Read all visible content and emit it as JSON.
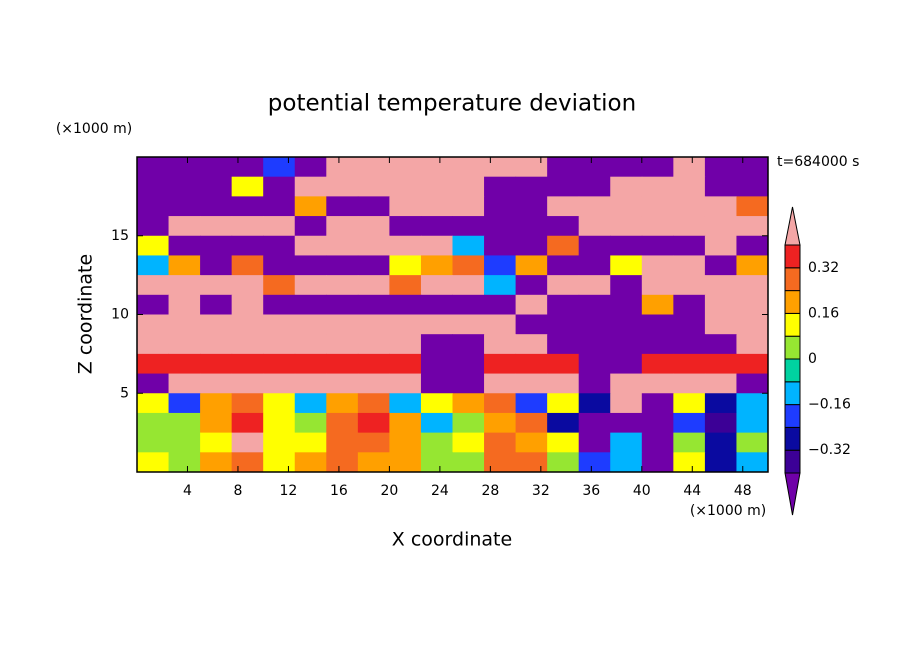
{
  "chart_data": {
    "type": "contour",
    "title": "potential temperature deviation",
    "x_label": "X coordinate",
    "y_label": "Z coordinate",
    "x_unit": "(×1000 m)",
    "y_unit": "(×1000 m)",
    "annotation": "t=684000 s",
    "xlim": [
      0,
      50
    ],
    "ylim": [
      0,
      20
    ],
    "xticks": [
      4,
      8,
      12,
      16,
      20,
      24,
      28,
      32,
      36,
      40,
      44,
      48
    ],
    "yticks": [
      5,
      10,
      15
    ],
    "levels": [
      -0.4,
      -0.32,
      -0.24,
      -0.16,
      -0.08,
      0,
      0.08,
      0.16,
      0.24,
      0.32,
      0.4
    ],
    "colors": [
      "#7000a8",
      "#3c0096",
      "#0a0aa0",
      "#1e3cff",
      "#00b4ff",
      "#00d2a0",
      "#96e632",
      "#ffff00",
      "#ffa000",
      "#f56a20",
      "#ee2222",
      "#f4a6a6"
    ],
    "colorbar_ticks": [
      0.32,
      0.16,
      0,
      {
        "value": -0.16,
        "label": "−0.16"
      },
      {
        "value": -0.32,
        "label": "−0.32"
      }
    ],
    "field": [
      [
        -0.5,
        -0.5,
        -0.5,
        -0.5,
        -0.2,
        -0.5,
        0.5,
        0.5,
        0.5,
        0.5,
        0.5,
        0.5,
        0.5,
        -0.5,
        -0.5,
        -0.5,
        -0.5,
        0.5,
        -0.5,
        -0.5
      ],
      [
        -0.5,
        -0.5,
        -0.5,
        0.1,
        -0.5,
        0.5,
        0.5,
        0.5,
        0.5,
        0.5,
        0.5,
        -0.5,
        -0.5,
        -0.5,
        -0.5,
        0.5,
        0.5,
        0.5,
        -0.5,
        -0.5
      ],
      [
        -0.5,
        -0.5,
        -0.5,
        -0.5,
        -0.5,
        0.2,
        -0.5,
        -0.5,
        0.5,
        0.5,
        0.5,
        -0.5,
        -0.5,
        0.5,
        0.5,
        0.5,
        0.5,
        0.5,
        0.5,
        0.3
      ],
      [
        -0.5,
        0.5,
        0.5,
        0.5,
        0.5,
        -0.5,
        0.5,
        0.5,
        -0.5,
        -0.5,
        -0.5,
        -0.5,
        -0.5,
        -0.5,
        0.5,
        0.5,
        0.5,
        0.5,
        0.5,
        0.5
      ],
      [
        0.1,
        -0.5,
        -0.5,
        -0.5,
        -0.5,
        0.5,
        0.5,
        0.5,
        0.5,
        0.5,
        -0.1,
        -0.5,
        -0.5,
        0.3,
        -0.5,
        -0.5,
        -0.5,
        -0.5,
        0.5,
        -0.5
      ],
      [
        -0.1,
        0.2,
        -0.5,
        0.3,
        -0.5,
        -0.5,
        -0.5,
        -0.5,
        0.1,
        0.2,
        0.3,
        -0.2,
        0.2,
        -0.5,
        -0.5,
        0.1,
        0.5,
        0.5,
        -0.5,
        0.2
      ],
      [
        0.5,
        0.5,
        0.5,
        0.5,
        0.3,
        0.5,
        0.5,
        0.5,
        0.3,
        0.5,
        0.5,
        -0.1,
        -0.5,
        0.5,
        0.5,
        -0.5,
        0.5,
        0.5,
        0.5,
        0.5
      ],
      [
        -0.5,
        0.5,
        -0.5,
        0.5,
        -0.5,
        -0.5,
        -0.5,
        -0.5,
        -0.5,
        -0.5,
        -0.5,
        -0.5,
        0.5,
        -0.5,
        -0.5,
        -0.5,
        0.2,
        -0.5,
        0.5,
        0.5
      ],
      [
        0.5,
        0.5,
        0.5,
        0.5,
        0.5,
        0.5,
        0.5,
        0.5,
        0.5,
        0.5,
        0.5,
        0.5,
        -0.5,
        -0.5,
        -0.5,
        -0.5,
        -0.5,
        -0.5,
        0.5,
        0.5
      ],
      [
        0.5,
        0.5,
        0.5,
        0.5,
        0.5,
        0.5,
        0.5,
        0.5,
        0.5,
        -0.5,
        -0.5,
        0.5,
        0.5,
        -0.5,
        -0.5,
        -0.5,
        -0.5,
        -0.5,
        -0.5,
        0.5
      ],
      [
        0.35,
        0.35,
        0.35,
        0.35,
        0.35,
        0.35,
        0.35,
        0.35,
        0.35,
        -0.5,
        -0.5,
        0.35,
        0.35,
        0.35,
        -0.5,
        -0.5,
        0.35,
        0.35,
        0.35,
        0.35
      ],
      [
        -0.5,
        0.5,
        0.5,
        0.5,
        0.5,
        0.5,
        0.5,
        0.5,
        0.5,
        -0.5,
        -0.5,
        0.5,
        0.5,
        0.5,
        -0.5,
        0.5,
        0.5,
        0.5,
        0.5,
        -0.5
      ],
      [
        0.1,
        -0.2,
        0.2,
        0.3,
        0.1,
        -0.1,
        0.2,
        0.3,
        -0.1,
        0.1,
        0.2,
        0.3,
        -0.2,
        0.1,
        -0.3,
        0.5,
        -0.5,
        0.1,
        -0.3,
        -0.1
      ],
      [
        0,
        0.05,
        0.2,
        0.35,
        0.1,
        0,
        0.3,
        0.35,
        0.2,
        -0.1,
        0.05,
        0.2,
        0.25,
        -0.3,
        -0.5,
        -0.5,
        -0.5,
        -0.2,
        -0.35,
        -0.1
      ],
      [
        0.05,
        0,
        0.15,
        0.5,
        0.1,
        0.1,
        0.3,
        0.3,
        0.2,
        0,
        0.1,
        0.3,
        0.2,
        0.1,
        -0.5,
        -0.1,
        -0.5,
        0,
        -0.3,
        0
      ],
      [
        0.1,
        0.05,
        0.2,
        0.3,
        0.1,
        0.2,
        0.3,
        0.2,
        0.2,
        0.05,
        0,
        0.3,
        0.25,
        0,
        -0.2,
        -0.1,
        -0.5,
        0.1,
        -0.3,
        -0.1
      ]
    ]
  }
}
